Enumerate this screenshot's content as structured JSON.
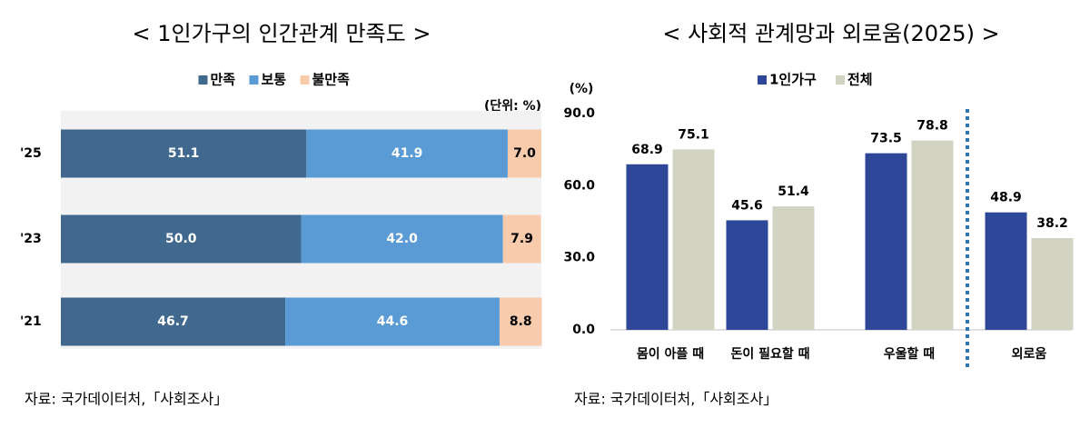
{
  "chart_data": [
    {
      "type": "bar",
      "orientation": "horizontal",
      "stacked": true,
      "title": "< 1인가구의 인간관계 만족도 >",
      "unit": "(단위: %)",
      "categories": [
        "'25",
        "'23",
        "'21"
      ],
      "xlim": [
        0,
        100
      ],
      "series": [
        {
          "name": "만족",
          "color": "#41688f",
          "label_color": "#ffffff",
          "values": [
            51.1,
            50.0,
            46.7
          ],
          "value_labels": [
            "51.1",
            "50.0",
            "46.7"
          ]
        },
        {
          "name": "보통",
          "color": "#5b9bd5",
          "label_color": "#ffffff",
          "values": [
            41.9,
            42.0,
            44.6
          ],
          "value_labels": [
            "41.9",
            "42.0",
            "44.6"
          ]
        },
        {
          "name": "불만족",
          "color": "#f8cbad",
          "label_color": "#000000",
          "values": [
            7.0,
            7.9,
            8.8
          ],
          "value_labels": [
            "7.0",
            "7.9",
            "8.8"
          ]
        }
      ],
      "background": "#f2f2f2",
      "source": "자료: 국가데이터처,「사회조사」"
    },
    {
      "type": "bar",
      "orientation": "vertical",
      "stacked": false,
      "title": "< 사회적 관계망과 외로움(2025) >",
      "y_label": "(%)",
      "categories": [
        "몸이 아플 때",
        "돈이 필요할 때",
        "우울할 때",
        "외로움"
      ],
      "ylim": [
        0,
        90
      ],
      "yticks": [
        {
          "value": 0,
          "label": "0.0"
        },
        {
          "value": 30,
          "label": "30.0"
        },
        {
          "value": 60,
          "label": "60.0"
        },
        {
          "value": 90,
          "label": "90.0"
        }
      ],
      "series": [
        {
          "name": "1인가구",
          "color": "#2e4799",
          "values": [
            68.9,
            45.6,
            73.5,
            48.9
          ]
        },
        {
          "name": "전체",
          "color": "#d3d3c4",
          "values": [
            75.1,
            51.4,
            78.8,
            38.2
          ]
        }
      ],
      "source": "자료: 국가데이터처,「사회조사」"
    }
  ]
}
